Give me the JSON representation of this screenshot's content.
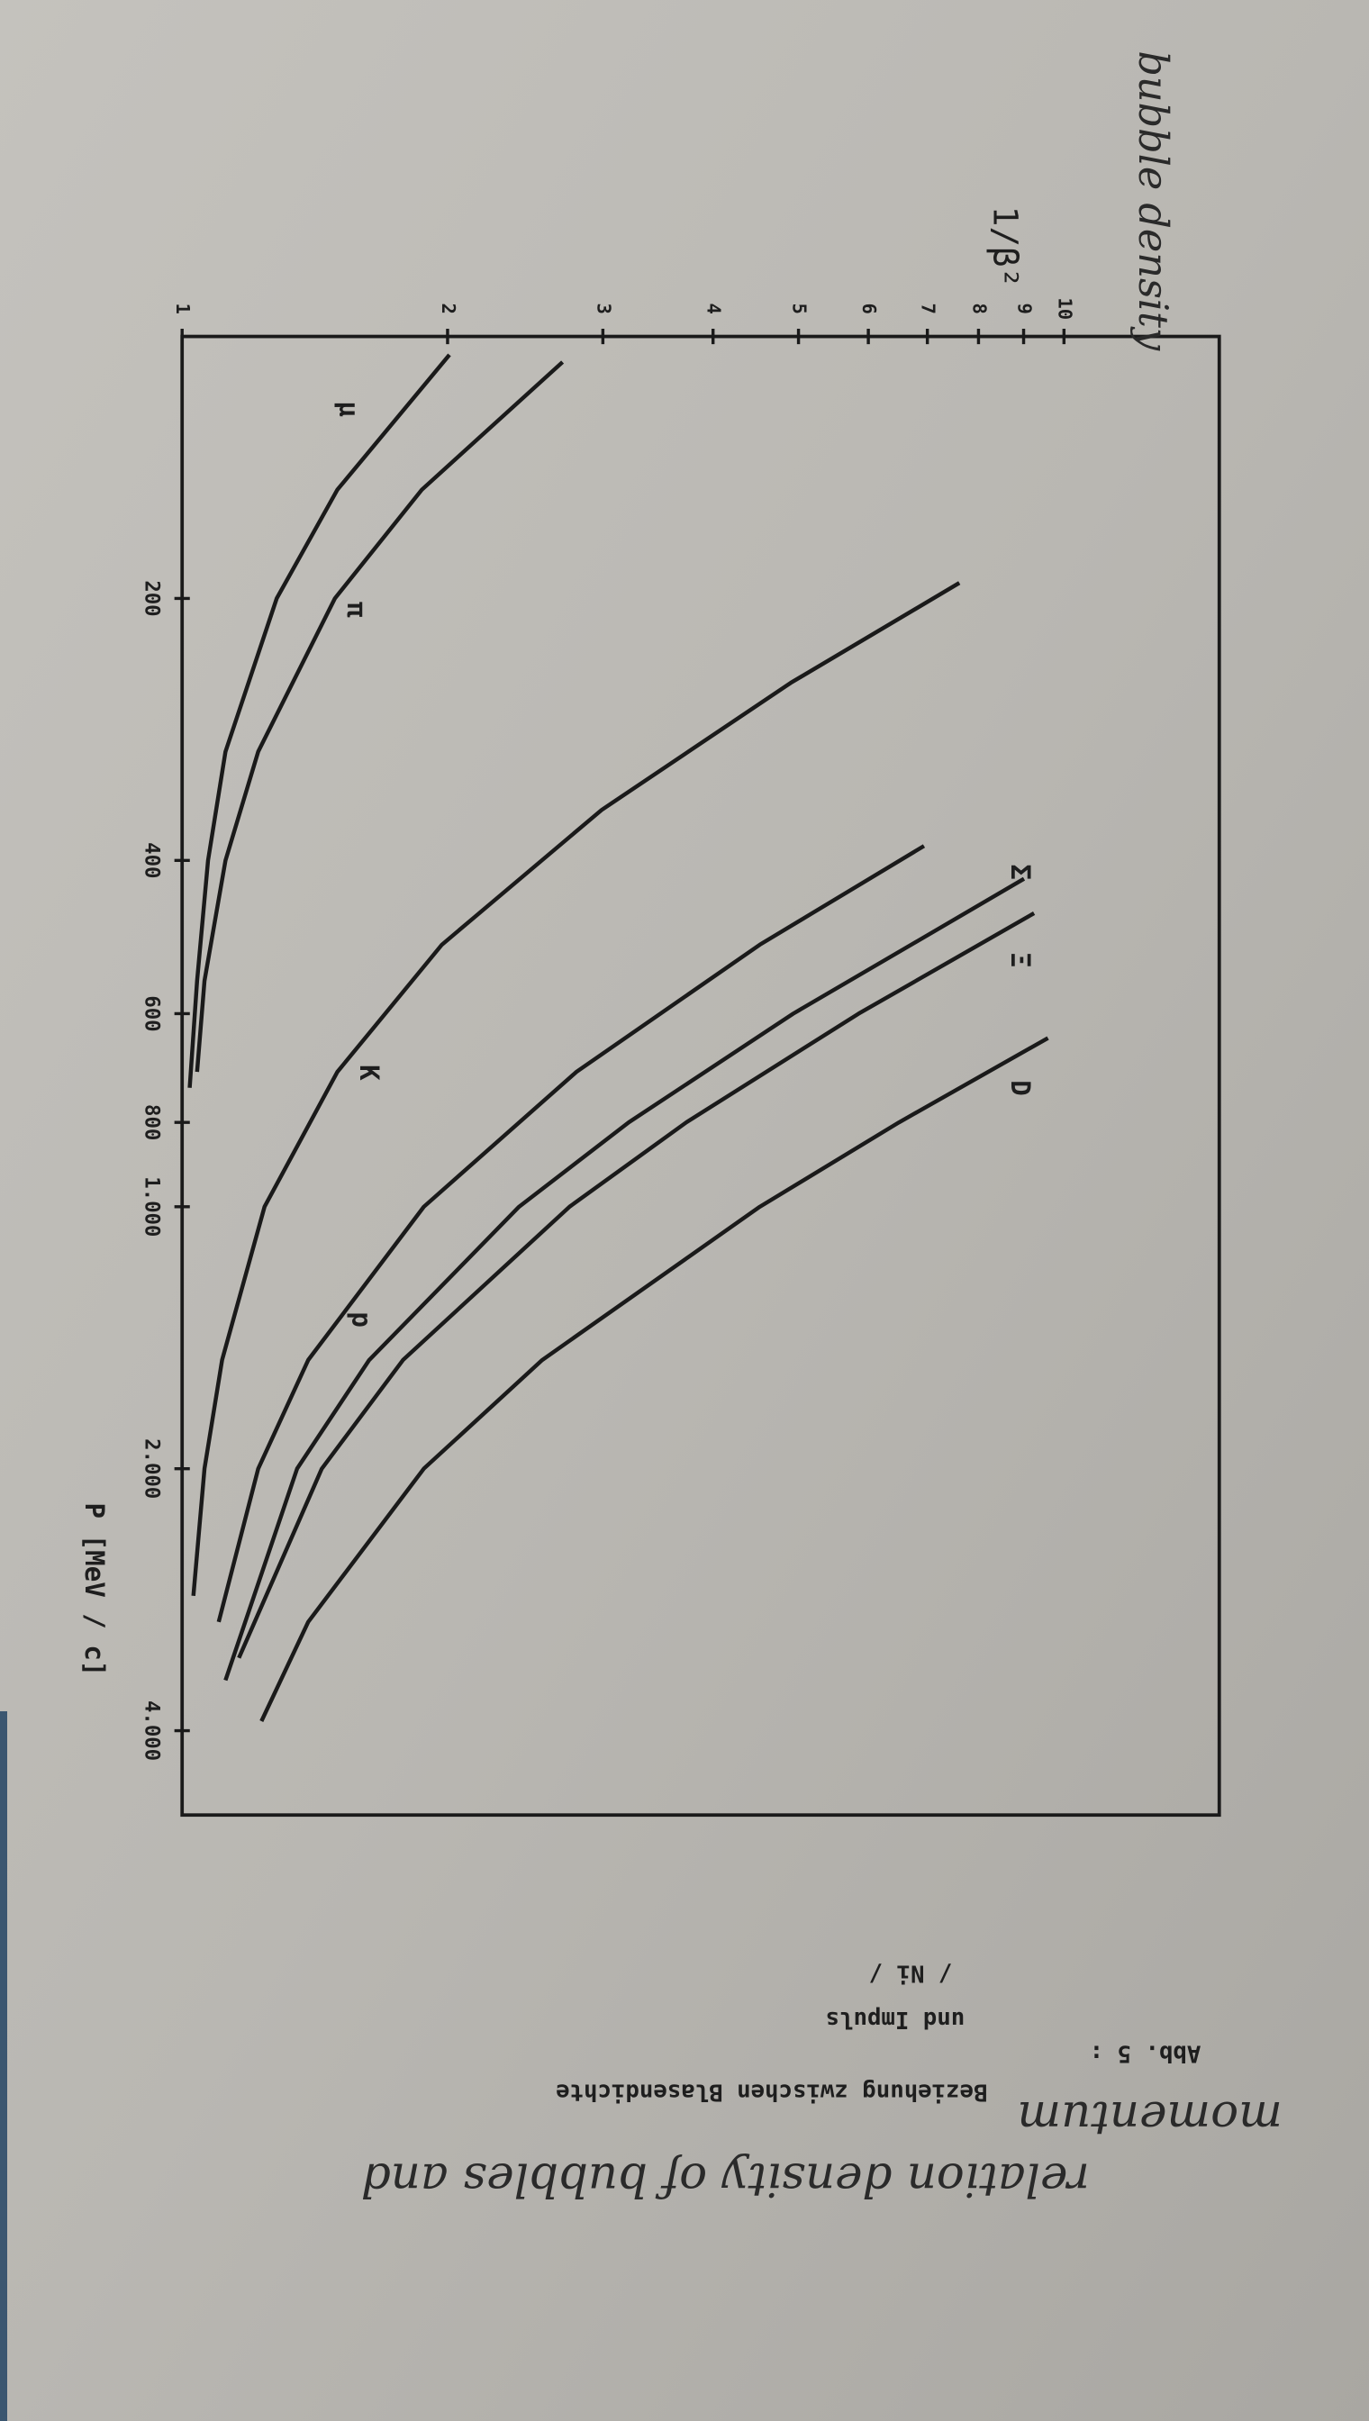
{
  "chart_data": {
    "type": "line",
    "annotation": "bubble density",
    "y_label": "1/β²",
    "x_label": "P [MeV / c]",
    "x_log": true,
    "y_log": true,
    "xlim": [
      100,
      5000
    ],
    "ylim": [
      1,
      15
    ],
    "xticks": [
      200,
      400,
      600,
      800,
      {
        "value": 1000,
        "label": "1.000"
      },
      {
        "value": 2000,
        "label": "2.000"
      },
      {
        "value": 4000,
        "label": "4.000"
      }
    ],
    "yticks": [
      1,
      2,
      3,
      4,
      5,
      6,
      7,
      8,
      9,
      10
    ],
    "color": "#1a1a1a",
    "series": [
      {
        "name": "μ",
        "x": [
          105,
          150,
          200,
          300,
          400,
          550,
          730
        ],
        "values": [
          2.01,
          1.5,
          1.28,
          1.12,
          1.07,
          1.04,
          1.02
        ]
      },
      {
        "name": "π",
        "x": [
          107,
          150,
          200,
          300,
          400,
          550,
          700
        ],
        "values": [
          2.7,
          1.87,
          1.49,
          1.22,
          1.12,
          1.06,
          1.04
        ]
      },
      {
        "name": "K",
        "x": [
          192,
          250,
          350,
          500,
          700,
          1000,
          1500,
          2000,
          2800
        ],
        "values": [
          7.61,
          4.9,
          2.99,
          1.97,
          1.5,
          1.24,
          1.11,
          1.06,
          1.03
        ]
      },
      {
        "name": "p",
        "x": [
          385,
          500,
          700,
          1000,
          1500,
          2000,
          3000
        ],
        "values": [
          6.94,
          4.52,
          2.8,
          1.88,
          1.39,
          1.22,
          1.1
        ]
      },
      {
        "name": "Σ",
        "x": [
          420,
          600,
          800,
          1000,
          1500,
          2000,
          3500
        ],
        "values": [
          9.01,
          4.93,
          3.21,
          2.41,
          1.63,
          1.35,
          1.12
        ]
      },
      {
        "name": "Ξ",
        "x": [
          460,
          600,
          800,
          1000,
          1500,
          2000,
          3300
        ],
        "values": [
          9.25,
          5.85,
          3.73,
          2.75,
          1.78,
          1.44,
          1.16
        ]
      },
      {
        "name": "D",
        "x": [
          640,
          800,
          1000,
          1500,
          2000,
          3000,
          3900
        ],
        "values": [
          9.59,
          6.5,
          4.52,
          2.56,
          1.88,
          1.39,
          1.23
        ]
      }
    ]
  },
  "caption": {
    "label": "Abb. 5 :",
    "lines": [
      "Beziehung zwischen Blasendichte",
      "und Impuls",
      "/ Ni /"
    ]
  },
  "handwritten_note": [
    "relation density of bubbles and",
    "momentum"
  ]
}
